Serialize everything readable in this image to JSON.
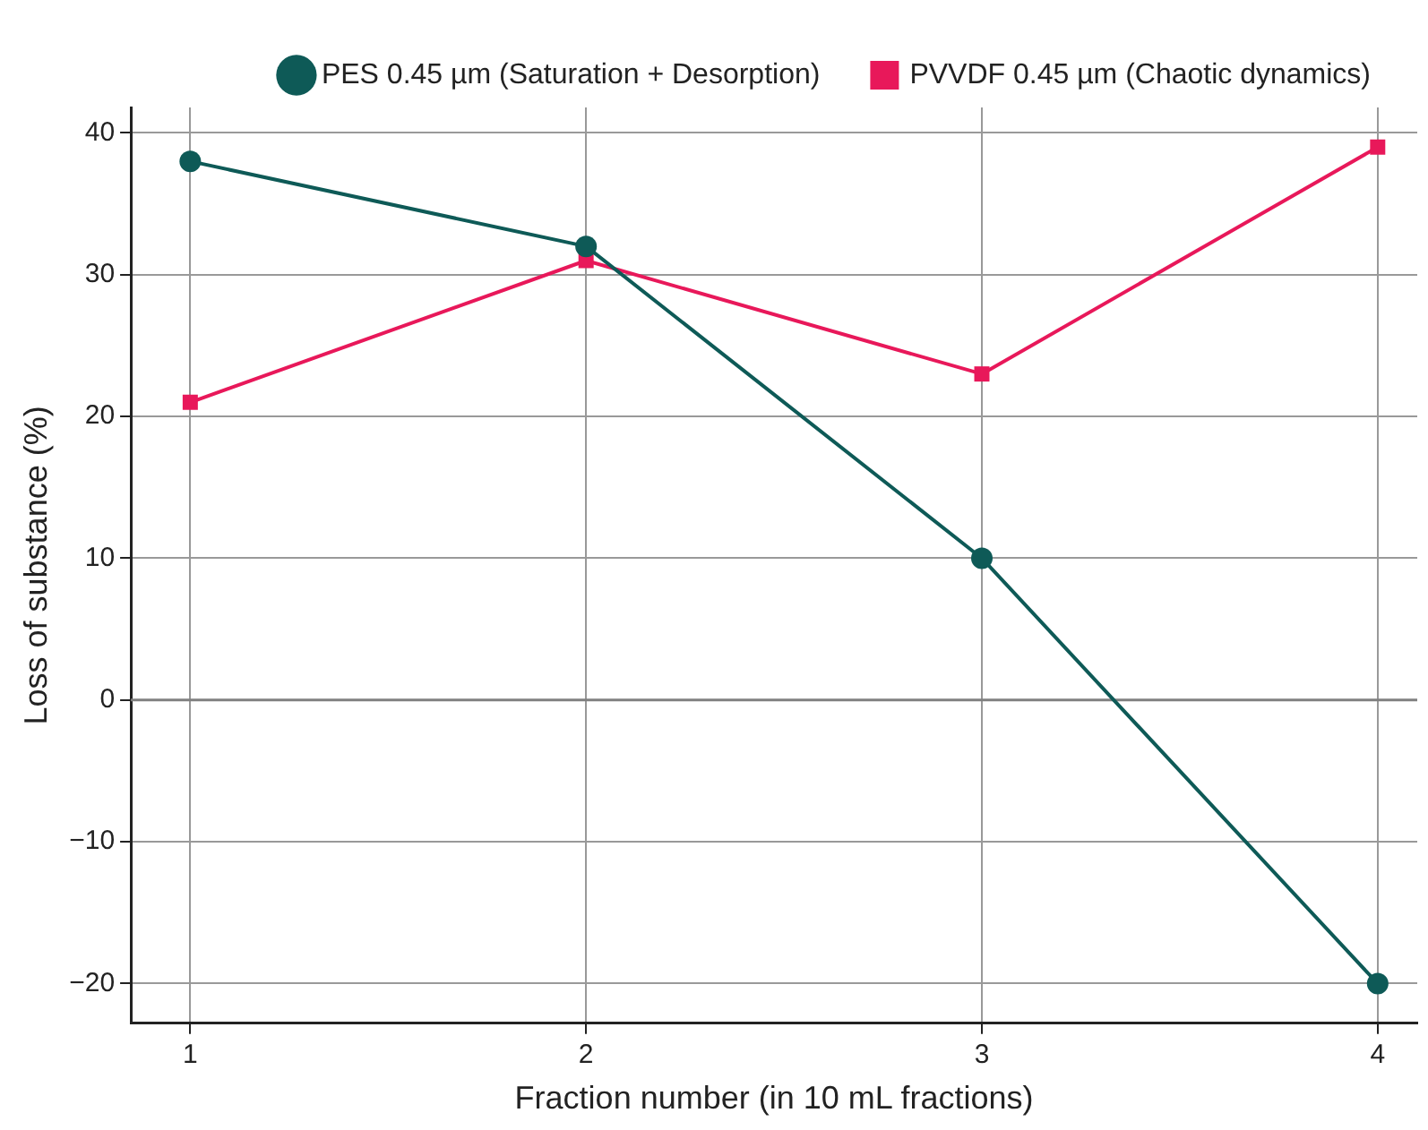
{
  "chart_data": {
    "type": "line",
    "xlabel": "Fraction number (in 10 mL fractions)",
    "ylabel": "Loss of substance (%)",
    "x": [
      1,
      2,
      3,
      4
    ],
    "xlim": [
      0.85,
      4.1
    ],
    "xticks": [
      1,
      2,
      3,
      4
    ],
    "ylim": [
      -22.8,
      41.8
    ],
    "yticks": [
      {
        "value": -20,
        "label": "−20"
      },
      {
        "value": -10,
        "label": "−10"
      },
      0,
      10,
      20,
      30,
      40
    ],
    "series": [
      {
        "name": "PES 0.45 µm (Saturation + Desorption)",
        "color": "#0e5a57",
        "marker": "circle",
        "values": [
          38,
          32,
          10,
          -20
        ]
      },
      {
        "name": "PVVDF 0.45 µm (Chaotic dynamics)",
        "color": "#e8185a",
        "marker": "square",
        "values": [
          21,
          31,
          23,
          39
        ]
      }
    ],
    "ref_lines": [
      {
        "axis": "y",
        "value": 0,
        "color": "#808080",
        "line_style": "solid"
      }
    ],
    "grid": true,
    "line_style": "solid",
    "legend": "top"
  }
}
